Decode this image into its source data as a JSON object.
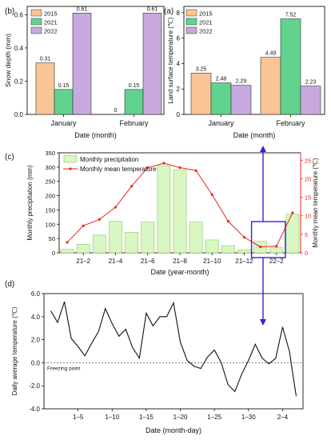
{
  "panel_tags": [
    "(b)",
    "(a)",
    "(c)",
    "(d)"
  ],
  "colors": {
    "y2015": "#f9c596",
    "y2021": "#61d38e",
    "y2022": "#c7a9df",
    "precip_fill": "#d9f7c2",
    "precip_stroke": "#8fc46a",
    "temp_line": "#e8281d",
    "highlight": "#3b1fd6",
    "daily_line": "#111111"
  },
  "chart_data": [
    {
      "type": "bar",
      "id": "b",
      "categories": [
        "January",
        "February"
      ],
      "series": [
        {
          "name": "2015",
          "values": [
            0.31,
            0
          ],
          "labels": [
            "0.31",
            "0"
          ]
        },
        {
          "name": "2021",
          "values": [
            0.15,
            0.15
          ],
          "labels": [
            "0.15",
            "0.15"
          ]
        },
        {
          "name": "2022",
          "values": [
            0.61,
            0.61
          ],
          "labels": [
            "0.61",
            "0.61"
          ]
        }
      ],
      "xlabel": "Date (month)",
      "ylabel": "Snow depth (mm)",
      "ylim": [
        0,
        0.65
      ],
      "yticks": [
        "0.0",
        "0.2",
        "0.4",
        "0.6"
      ],
      "legend": "top-left"
    },
    {
      "type": "bar",
      "id": "a",
      "categories": [
        "January",
        "February"
      ],
      "series": [
        {
          "name": "2015",
          "values": [
            3.25,
            4.49
          ],
          "labels": [
            "3.25",
            "4.49"
          ]
        },
        {
          "name": "2021",
          "values": [
            2.48,
            7.52
          ],
          "labels": [
            "2.48",
            "7.52"
          ]
        },
        {
          "name": "2022",
          "values": [
            2.29,
            2.23
          ],
          "labels": [
            "2.29",
            "2.23"
          ]
        }
      ],
      "xlabel": "Date (month)",
      "ylabel": "Land surface temperature (℃)",
      "ylim": [
        0,
        8.5
      ],
      "yticks": [
        "0",
        "2",
        "4",
        "6",
        "8"
      ],
      "legend": "top-left"
    },
    {
      "type": "bar+line",
      "id": "c",
      "x": [
        "21-1",
        "21-2",
        "21-3",
        "21-4",
        "21-5",
        "21-6",
        "21-7",
        "21-8",
        "21-9",
        "21-10",
        "21-11",
        "21-12",
        "22-1",
        "22-2",
        "22-3"
      ],
      "xticks": [
        "21–2",
        "21–4",
        "21–6",
        "21–8",
        "21–10",
        "21–12",
        "22–2"
      ],
      "series": [
        {
          "name": "Monthly precipitation",
          "type": "bar",
          "axis": "left",
          "values": [
            12,
            30,
            62,
            110,
            72,
            108,
            305,
            290,
            108,
            45,
            25,
            10,
            40,
            18,
            135
          ]
        },
        {
          "name": "Monthly mean temperature",
          "type": "line",
          "axis": "right",
          "values": [
            2.8,
            7.3,
            9.0,
            12.3,
            18.0,
            23.0,
            24.2,
            23.0,
            22.2,
            15.7,
            8.5,
            4.2,
            1.6,
            1.8,
            10.8
          ]
        }
      ],
      "xlabel": "Date (year-month)",
      "ylabel": "Monthly precipitation (mm)",
      "y2label": "Monthly mean temperature (℃)",
      "ylim": [
        0,
        350
      ],
      "y2lim": [
        0,
        27
      ],
      "yticks": [
        "0",
        "50",
        "100",
        "150",
        "200",
        "250",
        "300",
        "350"
      ],
      "y2ticks": [
        "0",
        "5",
        "10",
        "15",
        "20",
        "25"
      ],
      "legend": "top-left"
    },
    {
      "type": "line",
      "id": "d",
      "x": [
        1,
        2,
        3,
        4,
        5,
        6,
        7,
        8,
        9,
        10,
        11,
        12,
        13,
        14,
        15,
        16,
        17,
        18,
        19,
        20,
        21,
        22,
        23,
        24,
        25,
        26,
        27,
        28,
        29,
        30,
        31,
        32,
        33,
        34,
        35,
        36,
        37
      ],
      "y": [
        4.5,
        3.5,
        5.3,
        2.1,
        1.4,
        0.6,
        1.7,
        2.7,
        4.7,
        3.4,
        2.3,
        2.9,
        1.3,
        0.4,
        4.3,
        3.2,
        4.0,
        4.0,
        5.2,
        1.8,
        0.2,
        -0.3,
        -0.5,
        0.5,
        1.1,
        0,
        -1.9,
        -2.5,
        -1.0,
        0.2,
        1.6,
        0.4,
        -0.1,
        0.4,
        3.1,
        1.0,
        -2.9
      ],
      "xticks": [
        "1–5",
        "1–10",
        "1–15",
        "1–20",
        "1–25",
        "1–30",
        "2–4"
      ],
      "xtick_days": [
        5,
        10,
        15,
        20,
        25,
        30,
        35
      ],
      "xlabel": "Date (month-day)",
      "ylabel": "Daily average temperature (℃)",
      "ylim": [
        -4.0,
        6.0
      ],
      "yticks": [
        "-4.0",
        "-2.0",
        "0.0",
        "2.0",
        "4.0",
        "6.0"
      ],
      "annotation": "Freezing point",
      "reference_line": 0
    }
  ]
}
